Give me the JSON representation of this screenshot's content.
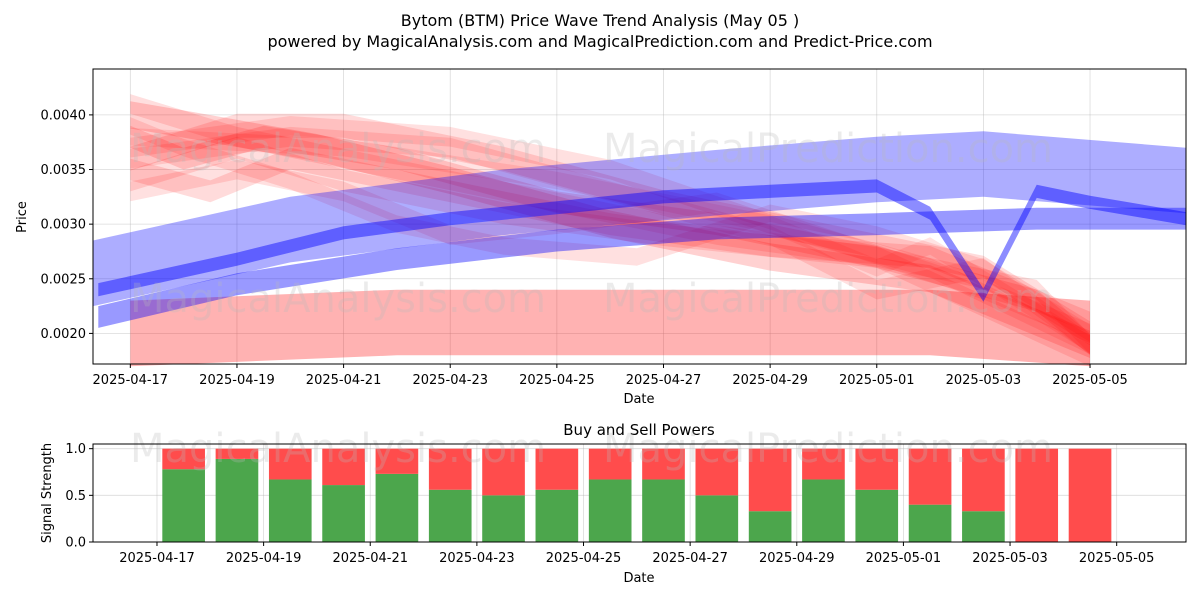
{
  "chart_data": [
    {
      "type": "area",
      "title": "Bytom (BTM) Price Wave Trend Analysis (May 05 )",
      "subtitle": "powered by MagicalAnalysis.com and MagicalPrediction.com and Predict-Price.com",
      "xlabel": "Date",
      "ylabel": "Price",
      "watermarks": [
        "MagicalAnalysis.com",
        "MagicalPrediction.com",
        "MagicalAnalysis.com",
        "MagicalPrediction.com"
      ],
      "x_ticks": [
        "2025-04-17",
        "2025-04-19",
        "2025-04-21",
        "2025-04-23",
        "2025-04-25",
        "2025-04-27",
        "2025-04-29",
        "2025-05-01",
        "2025-05-03",
        "2025-05-05"
      ],
      "y_ticks": [
        "0.0020",
        "0.0025",
        "0.0030",
        "0.0035",
        "0.0040"
      ],
      "ylim": [
        0.00172,
        0.00442
      ],
      "xlim_days": [
        -0.7,
        19.8
      ],
      "colors": {
        "sell": "#ff0000",
        "buy": "#0000ff"
      },
      "sell_waves": [
        {
          "x": [
            0,
            1.2,
            3.5,
            6,
            9,
            12,
            15,
            18
          ],
          "y": [
            0.004,
            0.0039,
            0.0037,
            0.0034,
            0.003,
            0.0027,
            0.0025,
            0.0019
          ],
          "w": 0.00025,
          "op": 0.18
        },
        {
          "x": [
            0,
            1,
            2.5,
            5,
            8,
            11,
            14,
            17,
            18
          ],
          "y": [
            0.0038,
            0.0036,
            0.0038,
            0.0036,
            0.0032,
            0.003,
            0.0027,
            0.0023,
            0.0019
          ],
          "w": 0.0002,
          "op": 0.16
        },
        {
          "x": [
            0,
            2,
            4,
            7,
            10,
            13,
            16,
            18
          ],
          "y": [
            0.0036,
            0.0039,
            0.0039,
            0.0036,
            0.0032,
            0.0029,
            0.0026,
            0.002
          ],
          "w": 0.00022,
          "op": 0.14
        },
        {
          "x": [
            0,
            1.5,
            3,
            6,
            9,
            12,
            15,
            18
          ],
          "y": [
            0.0035,
            0.0033,
            0.0036,
            0.0033,
            0.003,
            0.0028,
            0.0027,
            0.0021
          ],
          "w": 0.0002,
          "op": 0.14
        },
        {
          "x": [
            0,
            2,
            5,
            8,
            11,
            14,
            17,
            18
          ],
          "y": [
            0.0041,
            0.0038,
            0.0035,
            0.0032,
            0.0029,
            0.0027,
            0.0024,
            0.0019
          ],
          "w": 0.00018,
          "op": 0.13
        },
        {
          "x": [
            0,
            3,
            6,
            9,
            12,
            15,
            18
          ],
          "y": [
            0.0037,
            0.0039,
            0.0038,
            0.0035,
            0.003,
            0.0026,
            0.0019
          ],
          "w": 0.00018,
          "op": 0.12
        },
        {
          "x": [
            0,
            2,
            4,
            7,
            10,
            14,
            18
          ],
          "y": [
            0.0034,
            0.0037,
            0.0034,
            0.0031,
            0.0029,
            0.0027,
            0.0018
          ],
          "w": 0.0002,
          "op": 0.13
        },
        {
          "x": [
            0,
            1,
            3,
            5,
            7,
            9.5,
            12,
            14,
            16,
            18
          ],
          "y": [
            0.0039,
            0.0037,
            0.0034,
            0.003,
            0.0028,
            0.0027,
            0.0031,
            0.0029,
            0.0026,
            0.002
          ],
          "w": 0.00016,
          "op": 0.12
        },
        {
          "x": [
            0,
            2,
            4,
            6,
            8,
            11,
            13.5,
            16,
            18
          ],
          "y": [
            0.0033,
            0.0035,
            0.0033,
            0.0029,
            0.003,
            0.0032,
            0.0028,
            0.0024,
            0.002
          ],
          "w": 0.00018,
          "op": 0.12
        },
        {
          "x": [
            0,
            3,
            6,
            9,
            12,
            14,
            16,
            18
          ],
          "y": [
            0.0036,
            0.0038,
            0.0037,
            0.0033,
            0.0029,
            0.0024,
            0.0026,
            0.0019
          ],
          "w": 0.00018,
          "op": 0.12
        },
        {
          "x": [
            0,
            4,
            8,
            12,
            14,
            15,
            16,
            18
          ],
          "y": [
            0.0038,
            0.0037,
            0.0034,
            0.003,
            0.0026,
            0.0028,
            0.0025,
            0.0019
          ],
          "w": 0.00016,
          "op": 0.11
        },
        {
          "x": [
            0,
            5,
            10,
            15,
            18
          ],
          "y": [
            0.002,
            0.0021,
            0.0021,
            0.0021,
            0.002
          ],
          "w": 0.0006,
          "op": 0.3
        }
      ],
      "buy_waves": [
        {
          "x": [
            -0.7,
            3,
            7,
            11,
            14,
            16,
            19.8
          ],
          "y": [
            0.00255,
            0.00295,
            0.0032,
            0.00338,
            0.0035,
            0.00355,
            0.0034
          ],
          "w": 0.0006,
          "op": 0.32
        },
        {
          "x": [
            -0.6,
            2,
            4,
            6,
            8,
            10,
            12,
            14,
            15,
            16,
            17,
            18,
            19.8
          ],
          "y": [
            0.0024,
            0.00268,
            0.00292,
            0.00305,
            0.00315,
            0.00325,
            0.0033,
            0.00335,
            0.0031,
            0.00235,
            0.0033,
            0.0032,
            0.00305
          ],
          "w": 0.00012,
          "op": 0.45
        },
        {
          "x": [
            -0.6,
            2,
            5,
            8,
            11,
            14,
            17,
            19.8
          ],
          "y": [
            0.00215,
            0.00245,
            0.00268,
            0.00285,
            0.00296,
            0.003,
            0.00305,
            0.00305
          ],
          "w": 0.0002,
          "op": 0.4
        }
      ]
    },
    {
      "type": "bar",
      "title": "Buy and Sell Powers",
      "xlabel": "Date",
      "ylabel": "Signal Strength",
      "x_ticks": [
        "2025-04-17",
        "2025-04-19",
        "2025-04-21",
        "2025-04-23",
        "2025-04-25",
        "2025-04-27",
        "2025-04-29",
        "2025-05-01",
        "2025-05-03",
        "2025-05-05"
      ],
      "y_ticks": [
        "0.0",
        "0.5",
        "1.0"
      ],
      "ylim": [
        0,
        1.05
      ],
      "xlim_days": [
        -1.2,
        19.3
      ],
      "colors": {
        "buy": "#4ca64c",
        "sell": "#ff4c4c"
      },
      "day_offsets": [
        0,
        1,
        2,
        3,
        4,
        5,
        6,
        7,
        8,
        9,
        10,
        11,
        12,
        13,
        14,
        15,
        16,
        17
      ],
      "series": [
        {
          "name": "buy",
          "values": [
            0.78,
            0.89,
            0.67,
            0.61,
            0.73,
            0.56,
            0.5,
            0.56,
            0.67,
            0.67,
            0.5,
            0.33,
            0.67,
            0.56,
            0.4,
            0.33,
            0.0,
            0.0
          ]
        },
        {
          "name": "sell",
          "values": [
            0.22,
            0.11,
            0.33,
            0.39,
            0.27,
            0.44,
            0.5,
            0.44,
            0.33,
            0.33,
            0.5,
            0.67,
            0.33,
            0.44,
            0.6,
            0.67,
            1.0,
            1.0
          ]
        }
      ]
    }
  ]
}
